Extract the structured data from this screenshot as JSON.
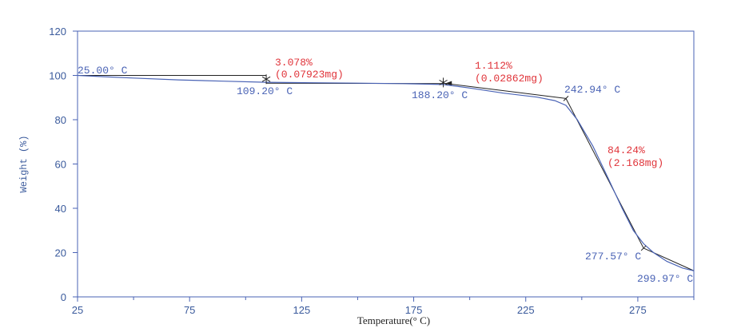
{
  "chart_data": {
    "type": "line",
    "title": "",
    "xlabel": "Temperature(° C)",
    "ylabel": "Weight (%)",
    "xlim": [
      25,
      300
    ],
    "ylim": [
      0,
      120
    ],
    "xticks": [
      25,
      75,
      125,
      175,
      225,
      275
    ],
    "yticks": [
      0,
      20,
      40,
      60,
      80,
      100,
      120
    ],
    "grid": false,
    "colors": {
      "curve": "#4a63b5",
      "construction": "#222222",
      "frame": "#4a63b5",
      "annotation_temp": "#4a63b5",
      "annotation_loss": "#e0343a"
    },
    "series": [
      {
        "x": [
          25,
          35,
          50,
          70,
          90,
          109.2,
          130,
          150,
          170,
          188.2,
          200,
          215,
          230,
          238,
          242.94,
          248,
          255,
          262,
          268,
          273,
          277.57,
          282,
          288,
          295,
          299.97
        ],
        "y": [
          100,
          99.5,
          98.8,
          98.0,
          97.4,
          96.9,
          96.7,
          96.5,
          96.3,
          95.9,
          94.3,
          92.0,
          90.2,
          88.6,
          86.5,
          80.0,
          68.0,
          53.0,
          40.0,
          30.0,
          24.0,
          20.0,
          16.0,
          13.0,
          11.8
        ]
      }
    ],
    "annotations": {
      "onsets": [
        {
          "label": "25.00° C",
          "x": 25,
          "y": 100
        },
        {
          "label": "109.20° C",
          "x": 109.2,
          "y": 98.5
        },
        {
          "label": "188.20° C",
          "x": 188.2,
          "y": 96.8
        },
        {
          "label": "242.94° C",
          "x": 242.94,
          "y": 89.6
        },
        {
          "label": "277.57° C",
          "x": 277.57,
          "y": 22.5
        },
        {
          "label": "299.97° C",
          "x": 299.97,
          "y": 11.8
        }
      ],
      "losses": [
        {
          "percent": "3.078%",
          "mass": "(0.07923mg)"
        },
        {
          "percent": "1.112%",
          "mass": "(0.02862mg)"
        },
        {
          "percent": "84.24%",
          "mass": "(2.168mg)"
        }
      ]
    }
  }
}
